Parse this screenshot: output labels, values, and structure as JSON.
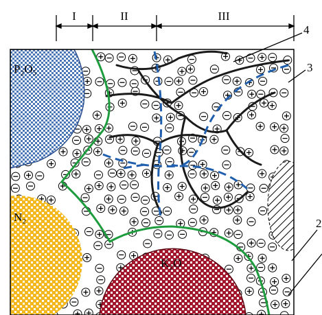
{
  "zones": [
    {
      "label": "I"
    },
    {
      "label": "II"
    },
    {
      "label": "III"
    }
  ],
  "regions": [
    {
      "label": "P₂O₅"
    },
    {
      "label": "N₂"
    },
    {
      "label": "K₂O"
    }
  ],
  "callouts": [
    {
      "label": "4"
    },
    {
      "label": "3"
    },
    {
      "label": "2"
    }
  ]
}
